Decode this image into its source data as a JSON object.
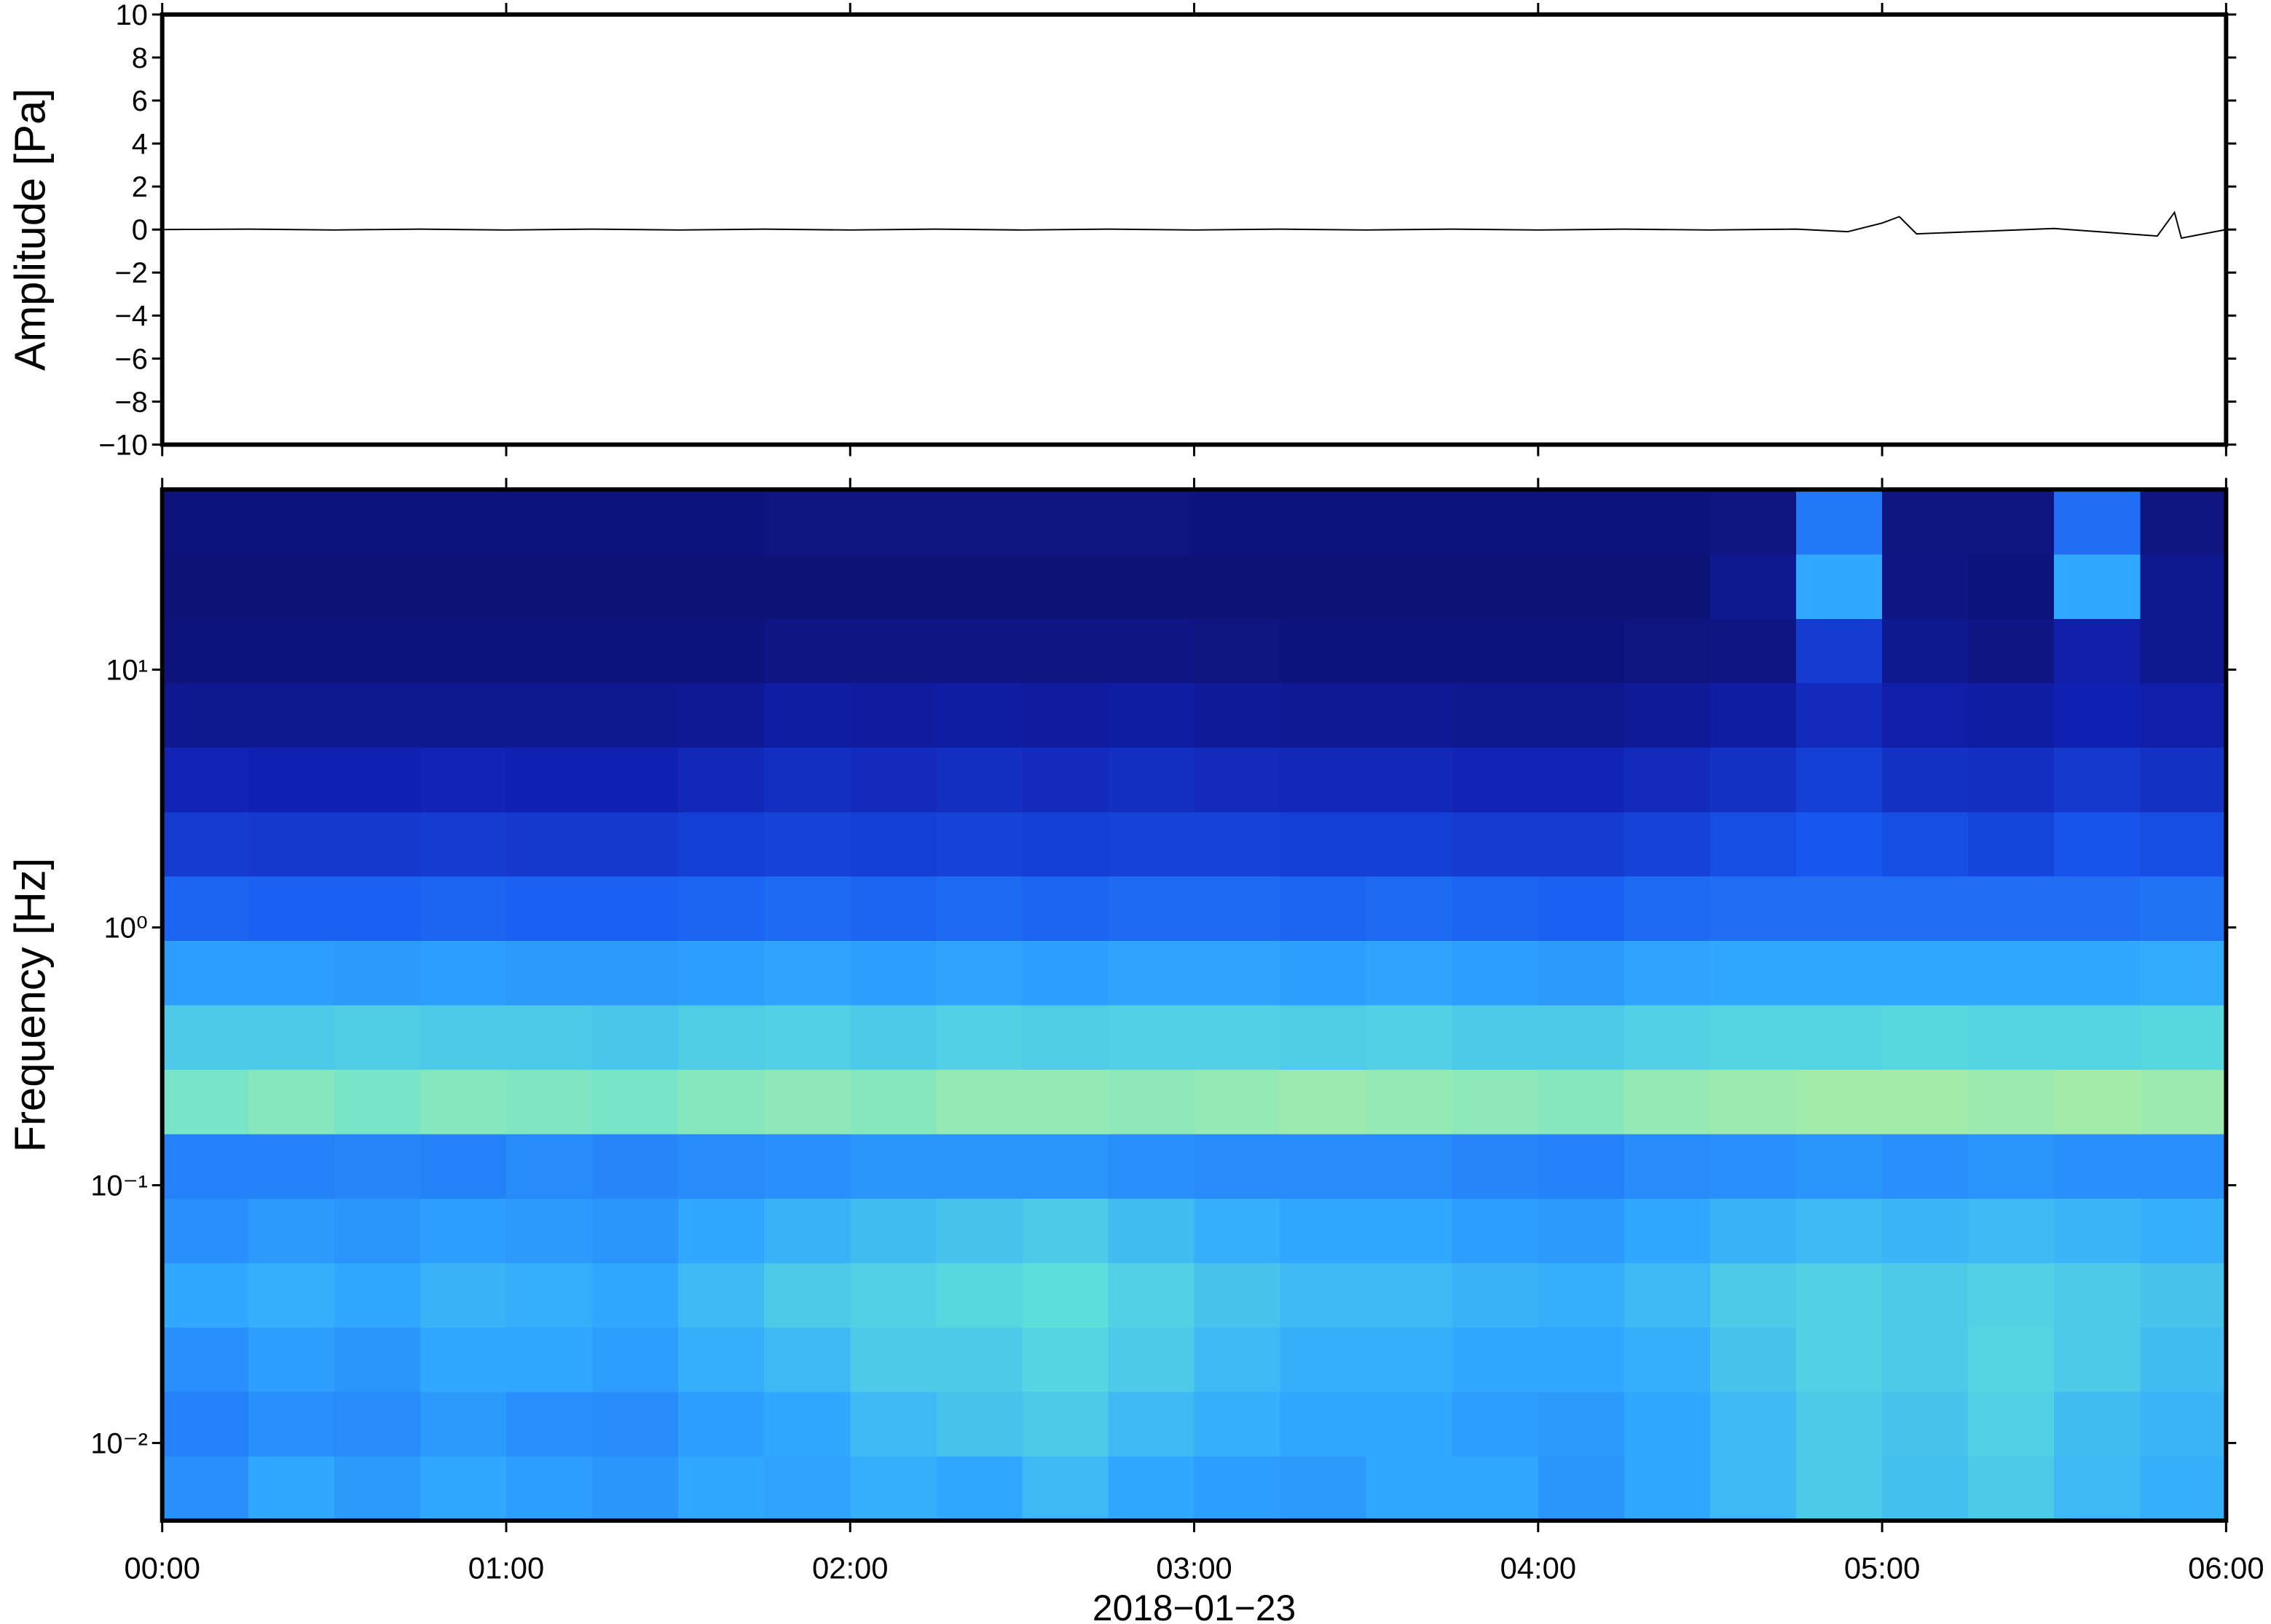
{
  "chart_data": [
    {
      "type": "line",
      "ylabel": "Amplitude [Pa]",
      "color": "#000000",
      "xlim": [
        0,
        6
      ],
      "xticks": [
        0,
        1,
        2,
        3,
        4,
        5,
        6
      ],
      "ylim": [
        -10,
        10
      ],
      "yticks": [
        {
          "value": -10,
          "label": "−10"
        },
        {
          "value": -8,
          "label": "−8"
        },
        {
          "value": -6,
          "label": "−6"
        },
        {
          "value": -4,
          "label": "−4"
        },
        {
          "value": -2,
          "label": "−2"
        },
        0,
        2,
        4,
        6,
        8,
        10
      ],
      "x": [
        0,
        0.25,
        0.5,
        0.75,
        1,
        1.25,
        1.5,
        1.75,
        2,
        2.25,
        2.5,
        2.75,
        3,
        3.25,
        3.5,
        3.75,
        4,
        4.25,
        4.5,
        4.75,
        4.9,
        5.0,
        5.05,
        5.1,
        5.5,
        5.8,
        5.85,
        5.87,
        6
      ],
      "values": [
        0,
        0.02,
        -0.02,
        0.02,
        -0.02,
        0.02,
        -0.02,
        0.02,
        -0.02,
        0.02,
        -0.02,
        0.02,
        -0.02,
        0.02,
        -0.02,
        0.02,
        -0.02,
        0.02,
        -0.02,
        0.02,
        -0.1,
        0.3,
        0.6,
        -0.2,
        0.05,
        -0.3,
        0.8,
        -0.4,
        0
      ]
    },
    {
      "type": "heatmap",
      "ylabel": "Frequency [Hz]",
      "xlabel": "2018−01−23",
      "log_y": true,
      "xlim": [
        0,
        6
      ],
      "xticks": [
        {
          "value": 0,
          "label": "00:00"
        },
        {
          "value": 1,
          "label": "01:00"
        },
        {
          "value": 2,
          "label": "02:00"
        },
        {
          "value": 3,
          "label": "03:00"
        },
        {
          "value": 4,
          "label": "04:00"
        },
        {
          "value": 5,
          "label": "05:00"
        },
        {
          "value": 6,
          "label": "06:00"
        }
      ],
      "ylim": [
        0.005,
        50
      ],
      "yticks": [
        {
          "value": 0.01,
          "label": "10⁻²"
        },
        {
          "value": 0.1,
          "label": "10⁻¹"
        },
        {
          "value": 1,
          "label": "10⁰"
        },
        {
          "value": 10,
          "label": "10¹"
        }
      ],
      "colormap": [
        "#0c0c5e",
        "#1020b0",
        "#1858f0",
        "#30a8ff",
        "#60e0d8",
        "#d8f488",
        "#f4a050"
      ],
      "zlim": [
        0,
        1
      ],
      "x_edges": [
        0,
        0.25,
        0.5,
        0.75,
        1,
        1.25,
        1.5,
        1.75,
        2,
        2.25,
        2.5,
        2.75,
        3,
        3.25,
        3.5,
        3.75,
        4,
        4.25,
        4.5,
        4.75,
        5,
        5.25,
        5.5,
        5.75,
        6
      ],
      "y_edges": [
        0.005,
        0.00891,
        0.01585,
        0.02818,
        0.05012,
        0.08913,
        0.1585,
        0.2818,
        0.5012,
        0.8913,
        1.585,
        2.818,
        5.012,
        8.913,
        15.85,
        28.18,
        50
      ],
      "values": [
        [
          0.45,
          0.5,
          0.47,
          0.5,
          0.48,
          0.46,
          0.5,
          0.49,
          0.52,
          0.5,
          0.55,
          0.5,
          0.48,
          0.47,
          0.5,
          0.5,
          0.46,
          0.5,
          0.55,
          0.6,
          0.57,
          0.6,
          0.55,
          0.52
        ],
        [
          0.42,
          0.45,
          0.44,
          0.47,
          0.45,
          0.44,
          0.48,
          0.5,
          0.55,
          0.58,
          0.6,
          0.55,
          0.52,
          0.5,
          0.5,
          0.48,
          0.47,
          0.5,
          0.55,
          0.6,
          0.58,
          0.62,
          0.56,
          0.54
        ],
        [
          0.45,
          0.48,
          0.46,
          0.5,
          0.5,
          0.48,
          0.52,
          0.55,
          0.6,
          0.6,
          0.63,
          0.6,
          0.55,
          0.52,
          0.52,
          0.5,
          0.5,
          0.52,
          0.58,
          0.62,
          0.6,
          0.63,
          0.6,
          0.56
        ],
        [
          0.5,
          0.52,
          0.5,
          0.53,
          0.52,
          0.5,
          0.55,
          0.6,
          0.62,
          0.64,
          0.66,
          0.62,
          0.58,
          0.55,
          0.55,
          0.53,
          0.52,
          0.55,
          0.6,
          0.62,
          0.6,
          0.62,
          0.6,
          0.58
        ],
        [
          0.45,
          0.47,
          0.46,
          0.48,
          0.47,
          0.46,
          0.5,
          0.53,
          0.56,
          0.58,
          0.6,
          0.56,
          0.52,
          0.5,
          0.5,
          0.48,
          0.47,
          0.5,
          0.53,
          0.55,
          0.54,
          0.55,
          0.54,
          0.52
        ],
        [
          0.42,
          0.42,
          0.43,
          0.42,
          0.44,
          0.43,
          0.44,
          0.45,
          0.46,
          0.46,
          0.46,
          0.45,
          0.44,
          0.44,
          0.44,
          0.43,
          0.42,
          0.44,
          0.45,
          0.46,
          0.45,
          0.46,
          0.45,
          0.45
        ],
        [
          0.7,
          0.72,
          0.7,
          0.72,
          0.71,
          0.7,
          0.72,
          0.73,
          0.72,
          0.74,
          0.74,
          0.73,
          0.74,
          0.75,
          0.74,
          0.73,
          0.72,
          0.74,
          0.75,
          0.76,
          0.76,
          0.75,
          0.76,
          0.75
        ],
        [
          0.6,
          0.6,
          0.61,
          0.6,
          0.6,
          0.59,
          0.61,
          0.62,
          0.6,
          0.62,
          0.61,
          0.62,
          0.62,
          0.61,
          0.62,
          0.6,
          0.6,
          0.62,
          0.63,
          0.63,
          0.64,
          0.63,
          0.63,
          0.64
        ],
        [
          0.48,
          0.48,
          0.47,
          0.48,
          0.47,
          0.47,
          0.48,
          0.49,
          0.48,
          0.49,
          0.48,
          0.49,
          0.49,
          0.48,
          0.49,
          0.48,
          0.47,
          0.49,
          0.5,
          0.5,
          0.5,
          0.5,
          0.5,
          0.51
        ],
        [
          0.36,
          0.35,
          0.35,
          0.36,
          0.35,
          0.35,
          0.36,
          0.37,
          0.36,
          0.37,
          0.36,
          0.37,
          0.37,
          0.36,
          0.37,
          0.36,
          0.35,
          0.37,
          0.38,
          0.38,
          0.38,
          0.38,
          0.38,
          0.39
        ],
        [
          0.25,
          0.24,
          0.24,
          0.25,
          0.24,
          0.24,
          0.26,
          0.27,
          0.26,
          0.27,
          0.26,
          0.27,
          0.27,
          0.26,
          0.26,
          0.25,
          0.25,
          0.27,
          0.3,
          0.33,
          0.3,
          0.28,
          0.32,
          0.3
        ],
        [
          0.18,
          0.17,
          0.17,
          0.18,
          0.17,
          0.17,
          0.19,
          0.21,
          0.2,
          0.21,
          0.2,
          0.21,
          0.2,
          0.19,
          0.19,
          0.18,
          0.18,
          0.2,
          0.22,
          0.26,
          0.22,
          0.21,
          0.24,
          0.22
        ],
        [
          0.1,
          0.1,
          0.1,
          0.1,
          0.1,
          0.1,
          0.11,
          0.14,
          0.13,
          0.14,
          0.13,
          0.14,
          0.12,
          0.11,
          0.11,
          0.1,
          0.1,
          0.12,
          0.14,
          0.2,
          0.15,
          0.14,
          0.17,
          0.15
        ],
        [
          0.06,
          0.06,
          0.06,
          0.06,
          0.06,
          0.06,
          0.06,
          0.08,
          0.08,
          0.08,
          0.08,
          0.08,
          0.07,
          0.06,
          0.06,
          0.06,
          0.06,
          0.07,
          0.08,
          0.25,
          0.1,
          0.08,
          0.15,
          0.1
        ],
        [
          0.05,
          0.05,
          0.05,
          0.05,
          0.05,
          0.05,
          0.05,
          0.05,
          0.05,
          0.05,
          0.05,
          0.05,
          0.05,
          0.05,
          0.05,
          0.05,
          0.05,
          0.05,
          0.1,
          0.5,
          0.08,
          0.06,
          0.5,
          0.1
        ],
        [
          0.06,
          0.06,
          0.06,
          0.06,
          0.06,
          0.06,
          0.06,
          0.07,
          0.07,
          0.07,
          0.07,
          0.07,
          0.06,
          0.06,
          0.06,
          0.06,
          0.06,
          0.06,
          0.07,
          0.4,
          0.07,
          0.07,
          0.38,
          0.07
        ]
      ]
    }
  ]
}
